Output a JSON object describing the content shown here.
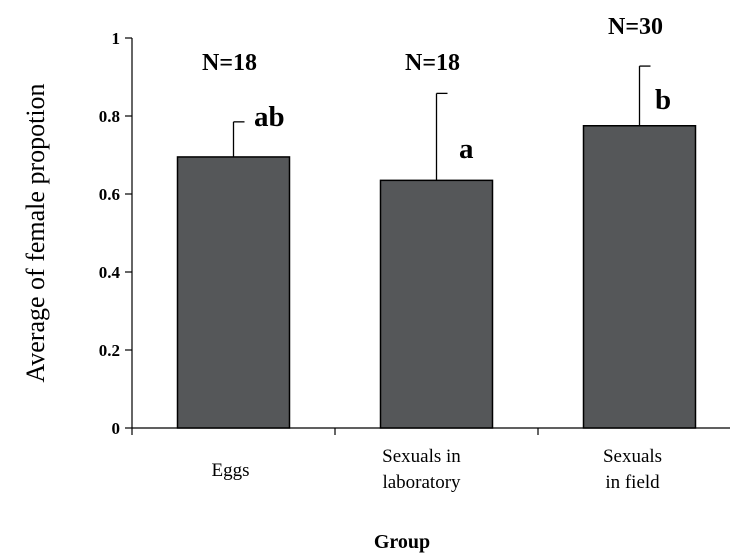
{
  "chart_data": {
    "type": "bar",
    "title": "",
    "xlabel": "Group",
    "ylabel": "Average of female propotion",
    "ylim": [
      0,
      1
    ],
    "yticks": [
      "0",
      "0.2",
      "0.4",
      "0.6",
      "0.8",
      "1"
    ],
    "categories": [
      [
        "Eggs"
      ],
      [
        "Sexuals in",
        "laboratory"
      ],
      [
        "Sexuals",
        "in field"
      ]
    ],
    "values": [
      0.695,
      0.635,
      0.775
    ],
    "error_upper": [
      0.785,
      0.858,
      0.928
    ],
    "n_labels": [
      "N=18",
      "N=18",
      "N=30"
    ],
    "significance": [
      "ab",
      "a",
      "b"
    ],
    "bar_color": "#555759",
    "grid": false
  }
}
